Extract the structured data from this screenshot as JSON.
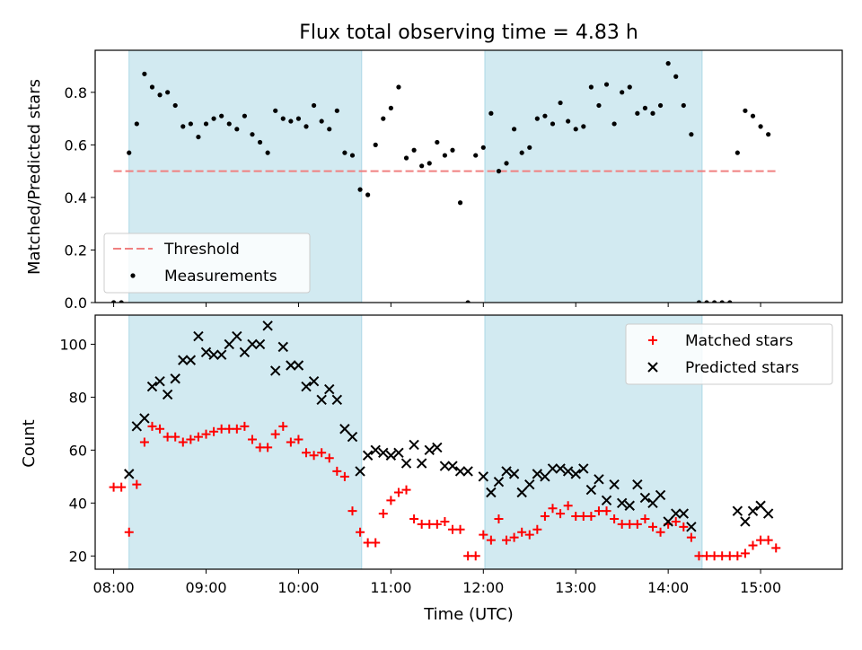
{
  "title": "Flux total observing time = 4.83 h",
  "colors": {
    "shade": "#add8e6",
    "threshold": "#f08080",
    "measurements": "#000000",
    "matched": "#ff0000",
    "predicted": "#000000"
  },
  "chart_data": [
    {
      "type": "scatter",
      "ylabel": "Matched/Predicted stars",
      "xlabel": "",
      "ylim": [
        0,
        0.96
      ],
      "y_ticks": [
        "0.0",
        "0.2",
        "0.4",
        "0.6",
        "0.8"
      ],
      "x_time_range": [
        "07:48",
        "15:53"
      ],
      "shaded_intervals": [
        [
          "08:10",
          "10:41"
        ],
        [
          "12:01",
          "14:22"
        ]
      ],
      "threshold": {
        "name": "Threshold",
        "value": 0.5,
        "x_range": [
          "08:00",
          "15:12"
        ],
        "style": "dashed"
      },
      "legend": {
        "location": "lower-left",
        "entries": [
          "Threshold",
          "Measurements"
        ]
      },
      "series": [
        {
          "name": "Measurements",
          "marker": "dot",
          "points": [
            [
              "08:00",
              0.0
            ],
            [
              "08:05",
              0.0
            ],
            [
              "08:10",
              0.57
            ],
            [
              "08:15",
              0.68
            ],
            [
              "08:20",
              0.87
            ],
            [
              "08:25",
              0.82
            ],
            [
              "08:30",
              0.79
            ],
            [
              "08:35",
              0.8
            ],
            [
              "08:40",
              0.75
            ],
            [
              "08:45",
              0.67
            ],
            [
              "08:50",
              0.68
            ],
            [
              "08:55",
              0.63
            ],
            [
              "09:00",
              0.68
            ],
            [
              "09:05",
              0.7
            ],
            [
              "09:10",
              0.71
            ],
            [
              "09:15",
              0.68
            ],
            [
              "09:20",
              0.66
            ],
            [
              "09:25",
              0.71
            ],
            [
              "09:30",
              0.64
            ],
            [
              "09:35",
              0.61
            ],
            [
              "09:40",
              0.57
            ],
            [
              "09:45",
              0.73
            ],
            [
              "09:50",
              0.7
            ],
            [
              "09:55",
              0.69
            ],
            [
              "10:00",
              0.7
            ],
            [
              "10:05",
              0.67
            ],
            [
              "10:10",
              0.75
            ],
            [
              "10:15",
              0.69
            ],
            [
              "10:20",
              0.66
            ],
            [
              "10:25",
              0.73
            ],
            [
              "10:30",
              0.57
            ],
            [
              "10:35",
              0.56
            ],
            [
              "10:40",
              0.43
            ],
            [
              "10:45",
              0.41
            ],
            [
              "10:50",
              0.6
            ],
            [
              "10:55",
              0.7
            ],
            [
              "11:00",
              0.74
            ],
            [
              "11:05",
              0.82
            ],
            [
              "11:10",
              0.55
            ],
            [
              "11:15",
              0.58
            ],
            [
              "11:20",
              0.52
            ],
            [
              "11:25",
              0.53
            ],
            [
              "11:30",
              0.61
            ],
            [
              "11:35",
              0.56
            ],
            [
              "11:40",
              0.58
            ],
            [
              "11:45",
              0.38
            ],
            [
              "11:50",
              0.0
            ],
            [
              "11:55",
              0.56
            ],
            [
              "12:00",
              0.59
            ],
            [
              "12:05",
              0.72
            ],
            [
              "12:10",
              0.5
            ],
            [
              "12:15",
              0.53
            ],
            [
              "12:20",
              0.66
            ],
            [
              "12:25",
              0.57
            ],
            [
              "12:30",
              0.59
            ],
            [
              "12:35",
              0.7
            ],
            [
              "12:40",
              0.71
            ],
            [
              "12:45",
              0.68
            ],
            [
              "12:50",
              0.76
            ],
            [
              "12:55",
              0.69
            ],
            [
              "13:00",
              0.66
            ],
            [
              "13:05",
              0.67
            ],
            [
              "13:10",
              0.82
            ],
            [
              "13:15",
              0.75
            ],
            [
              "13:20",
              0.83
            ],
            [
              "13:25",
              0.68
            ],
            [
              "13:30",
              0.8
            ],
            [
              "13:35",
              0.82
            ],
            [
              "13:40",
              0.72
            ],
            [
              "13:45",
              0.74
            ],
            [
              "13:50",
              0.72
            ],
            [
              "13:55",
              0.75
            ],
            [
              "14:00",
              0.91
            ],
            [
              "14:05",
              0.86
            ],
            [
              "14:10",
              0.75
            ],
            [
              "14:15",
              0.64
            ],
            [
              "14:20",
              0.0
            ],
            [
              "14:25",
              0.0
            ],
            [
              "14:30",
              0.0
            ],
            [
              "14:35",
              0.0
            ],
            [
              "14:40",
              0.0
            ],
            [
              "14:45",
              0.57
            ],
            [
              "14:50",
              0.73
            ],
            [
              "14:55",
              0.71
            ],
            [
              "15:00",
              0.67
            ],
            [
              "15:05",
              0.64
            ]
          ]
        }
      ]
    },
    {
      "type": "scatter",
      "ylabel": "Count",
      "xlabel": "Time (UTC)",
      "ylim": [
        15,
        111
      ],
      "y_ticks": [
        "20",
        "40",
        "60",
        "80",
        "100"
      ],
      "x_ticks": [
        "08:00",
        "09:00",
        "10:00",
        "11:00",
        "12:00",
        "13:00",
        "14:00",
        "15:00"
      ],
      "x_time_range": [
        "07:48",
        "15:53"
      ],
      "shaded_intervals": [
        [
          "08:10",
          "10:41"
        ],
        [
          "12:01",
          "14:22"
        ]
      ],
      "legend": {
        "location": "upper-right",
        "entries": [
          "Matched stars",
          "Predicted stars"
        ]
      },
      "series": [
        {
          "name": "Matched stars",
          "marker": "plus",
          "points": [
            [
              "08:00",
              46
            ],
            [
              "08:05",
              46
            ],
            [
              "08:10",
              29
            ],
            [
              "08:15",
              47
            ],
            [
              "08:20",
              63
            ],
            [
              "08:25",
              69
            ],
            [
              "08:30",
              68
            ],
            [
              "08:35",
              65
            ],
            [
              "08:40",
              65
            ],
            [
              "08:45",
              63
            ],
            [
              "08:50",
              64
            ],
            [
              "08:55",
              65
            ],
            [
              "09:00",
              66
            ],
            [
              "09:05",
              67
            ],
            [
              "09:10",
              68
            ],
            [
              "09:15",
              68
            ],
            [
              "09:20",
              68
            ],
            [
              "09:25",
              69
            ],
            [
              "09:30",
              64
            ],
            [
              "09:35",
              61
            ],
            [
              "09:40",
              61
            ],
            [
              "09:45",
              66
            ],
            [
              "09:50",
              69
            ],
            [
              "09:55",
              63
            ],
            [
              "10:00",
              64
            ],
            [
              "10:05",
              59
            ],
            [
              "10:10",
              58
            ],
            [
              "10:15",
              59
            ],
            [
              "10:20",
              57
            ],
            [
              "10:25",
              52
            ],
            [
              "10:30",
              50
            ],
            [
              "10:35",
              37
            ],
            [
              "10:40",
              29
            ],
            [
              "10:45",
              25
            ],
            [
              "10:50",
              25
            ],
            [
              "10:55",
              36
            ],
            [
              "11:00",
              41
            ],
            [
              "11:05",
              44
            ],
            [
              "11:10",
              45
            ],
            [
              "11:15",
              34
            ],
            [
              "11:20",
              32
            ],
            [
              "11:25",
              32
            ],
            [
              "11:30",
              32
            ],
            [
              "11:35",
              33
            ],
            [
              "11:40",
              30
            ],
            [
              "11:45",
              30
            ],
            [
              "11:50",
              20
            ],
            [
              "11:55",
              20
            ],
            [
              "12:00",
              28
            ],
            [
              "12:05",
              26
            ],
            [
              "12:10",
              34
            ],
            [
              "12:15",
              26
            ],
            [
              "12:20",
              27
            ],
            [
              "12:25",
              29
            ],
            [
              "12:30",
              28
            ],
            [
              "12:35",
              30
            ],
            [
              "12:40",
              35
            ],
            [
              "12:45",
              38
            ],
            [
              "12:50",
              36
            ],
            [
              "12:55",
              39
            ],
            [
              "13:00",
              35
            ],
            [
              "13:05",
              35
            ],
            [
              "13:10",
              35
            ],
            [
              "13:15",
              37
            ],
            [
              "13:20",
              37
            ],
            [
              "13:25",
              34
            ],
            [
              "13:30",
              32
            ],
            [
              "13:35",
              32
            ],
            [
              "13:40",
              32
            ],
            [
              "13:45",
              34
            ],
            [
              "13:50",
              31
            ],
            [
              "13:55",
              29
            ],
            [
              "14:00",
              32
            ],
            [
              "14:05",
              33
            ],
            [
              "14:10",
              31
            ],
            [
              "14:15",
              27
            ],
            [
              "14:20",
              20
            ],
            [
              "14:25",
              20
            ],
            [
              "14:30",
              20
            ],
            [
              "14:35",
              20
            ],
            [
              "14:40",
              20
            ],
            [
              "14:45",
              20
            ],
            [
              "14:50",
              21
            ],
            [
              "14:55",
              24
            ],
            [
              "15:00",
              26
            ],
            [
              "15:05",
              26
            ],
            [
              "15:10",
              23
            ]
          ]
        },
        {
          "name": "Predicted stars",
          "marker": "x",
          "points": [
            [
              "08:10",
              51
            ],
            [
              "08:15",
              69
            ],
            [
              "08:20",
              72
            ],
            [
              "08:25",
              84
            ],
            [
              "08:30",
              86
            ],
            [
              "08:35",
              81
            ],
            [
              "08:40",
              87
            ],
            [
              "08:45",
              94
            ],
            [
              "08:50",
              94
            ],
            [
              "08:55",
              103
            ],
            [
              "09:00",
              97
            ],
            [
              "09:05",
              96
            ],
            [
              "09:10",
              96
            ],
            [
              "09:15",
              100
            ],
            [
              "09:20",
              103
            ],
            [
              "09:25",
              97
            ],
            [
              "09:30",
              100
            ],
            [
              "09:35",
              100
            ],
            [
              "09:40",
              107
            ],
            [
              "09:45",
              90
            ],
            [
              "09:50",
              99
            ],
            [
              "09:55",
              92
            ],
            [
              "10:00",
              92
            ],
            [
              "10:05",
              84
            ],
            [
              "10:10",
              86
            ],
            [
              "10:15",
              79
            ],
            [
              "10:20",
              83
            ],
            [
              "10:25",
              79
            ],
            [
              "10:30",
              68
            ],
            [
              "10:35",
              65
            ],
            [
              "10:40",
              52
            ],
            [
              "10:45",
              58
            ],
            [
              "10:50",
              60
            ],
            [
              "10:55",
              59
            ],
            [
              "11:00",
              58
            ],
            [
              "11:05",
              59
            ],
            [
              "11:10",
              55
            ],
            [
              "11:15",
              62
            ],
            [
              "11:20",
              55
            ],
            [
              "11:25",
              60
            ],
            [
              "11:30",
              61
            ],
            [
              "11:35",
              54
            ],
            [
              "11:40",
              54
            ],
            [
              "11:45",
              52
            ],
            [
              "11:50",
              52
            ],
            [
              "12:00",
              50
            ],
            [
              "12:05",
              44
            ],
            [
              "12:10",
              48
            ],
            [
              "12:15",
              52
            ],
            [
              "12:20",
              51
            ],
            [
              "12:25",
              44
            ],
            [
              "12:30",
              47
            ],
            [
              "12:35",
              51
            ],
            [
              "12:40",
              50
            ],
            [
              "12:45",
              53
            ],
            [
              "12:50",
              53
            ],
            [
              "12:55",
              52
            ],
            [
              "13:00",
              51
            ],
            [
              "13:05",
              53
            ],
            [
              "13:10",
              45
            ],
            [
              "13:15",
              49
            ],
            [
              "13:20",
              41
            ],
            [
              "13:25",
              47
            ],
            [
              "13:30",
              40
            ],
            [
              "13:35",
              39
            ],
            [
              "13:40",
              47
            ],
            [
              "13:45",
              42
            ],
            [
              "13:50",
              40
            ],
            [
              "13:55",
              43
            ],
            [
              "14:00",
              33
            ],
            [
              "14:05",
              36
            ],
            [
              "14:10",
              36
            ],
            [
              "14:15",
              31
            ],
            [
              "14:45",
              37
            ],
            [
              "14:50",
              33
            ],
            [
              "14:55",
              37
            ],
            [
              "15:00",
              39
            ],
            [
              "15:05",
              36
            ]
          ]
        }
      ]
    }
  ]
}
